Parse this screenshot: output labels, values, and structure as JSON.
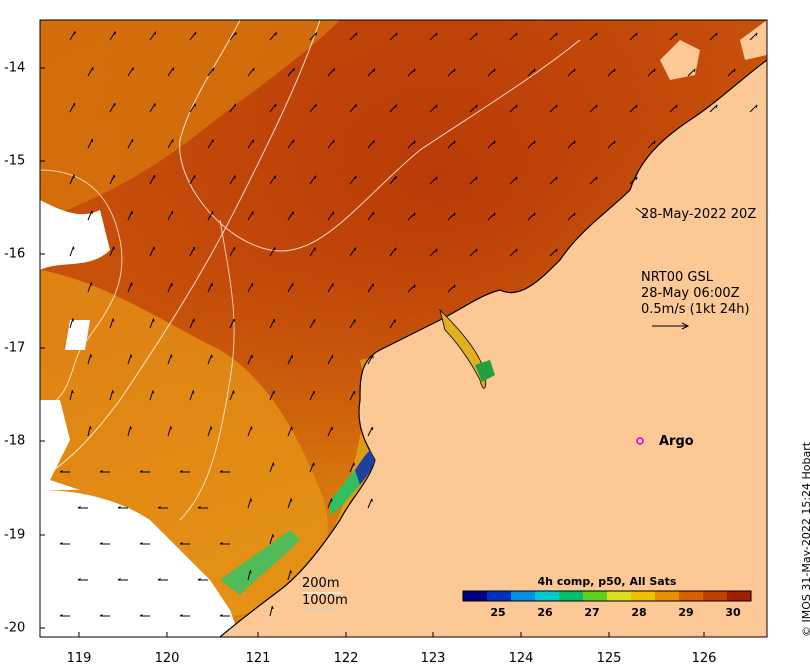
{
  "x_ticks": [
    "119",
    "120",
    "121",
    "122",
    "123",
    "124",
    "125",
    "126"
  ],
  "y_ticks": [
    "-14",
    "-15",
    "-16",
    "-17",
    "-18",
    "-19",
    "-20"
  ],
  "timestamp": "28-May-2022 20Z",
  "current_info": {
    "line1": "NRT00 GSL",
    "line2": "28-May 06:00Z",
    "line3": "0.5m/s (1kt 24h)"
  },
  "argo_label": "Argo",
  "contours": {
    "label_200": "200m",
    "label_1000": "1000m"
  },
  "colorbar": {
    "title": "4h comp, p50, All Sats",
    "ticks": [
      "25",
      "26",
      "27",
      "28",
      "29",
      "30"
    ],
    "colors": [
      "#000080",
      "#0030c0",
      "#0090e0",
      "#00c8d0",
      "#00c070",
      "#60d020",
      "#d8e020",
      "#f0c000",
      "#e89000",
      "#d86000",
      "#c04000",
      "#a02000"
    ]
  },
  "credit": "© IMOS 31-May-2022 15:24 Hobart",
  "colors": {
    "land": "#fcc896",
    "sst_warm": "#c0400a",
    "sst_mid": "#d86a0a",
    "sst_cool": "#e89a0c",
    "argo_marker": "#e000e0"
  }
}
